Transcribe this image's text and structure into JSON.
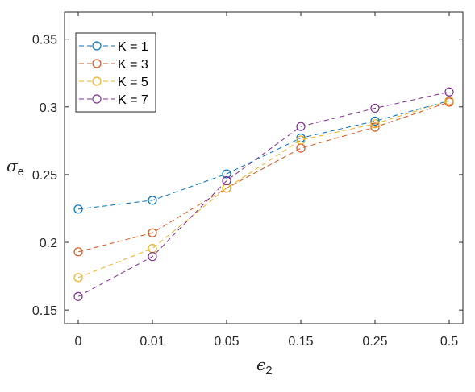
{
  "chart_data": {
    "type": "line",
    "categories": [
      "0",
      "0.01",
      "0.05",
      "0.15",
      "0.25",
      "0.5"
    ],
    "ylabel_symbol": "σ",
    "ylabel_subscript": "e",
    "xlabel_symbol": "ϵ",
    "xlabel_subscript": "2",
    "ylim": [
      0.14,
      0.37
    ],
    "yticks": [
      0.15,
      0.2,
      0.25,
      0.3,
      0.35
    ],
    "ytick_labels": [
      "0.15",
      "0.2",
      "0.25",
      "0.3",
      "0.35"
    ],
    "grid": false,
    "legend_position": "top-left",
    "series": [
      {
        "name": "K = 1",
        "color": "#0072BD",
        "values": [
          0.2245,
          0.231,
          0.2505,
          0.277,
          0.2895,
          0.3045
        ]
      },
      {
        "name": "K = 3",
        "color": "#D95319",
        "values": [
          0.193,
          0.207,
          0.24,
          0.2695,
          0.285,
          0.3035
        ]
      },
      {
        "name": "K = 5",
        "color": "#EDB120",
        "values": [
          0.174,
          0.1955,
          0.24,
          0.2755,
          0.2875,
          0.3045
        ]
      },
      {
        "name": "K = 7",
        "color": "#7E2F8E",
        "values": [
          0.16,
          0.1895,
          0.2455,
          0.2855,
          0.299,
          0.311
        ]
      }
    ]
  }
}
